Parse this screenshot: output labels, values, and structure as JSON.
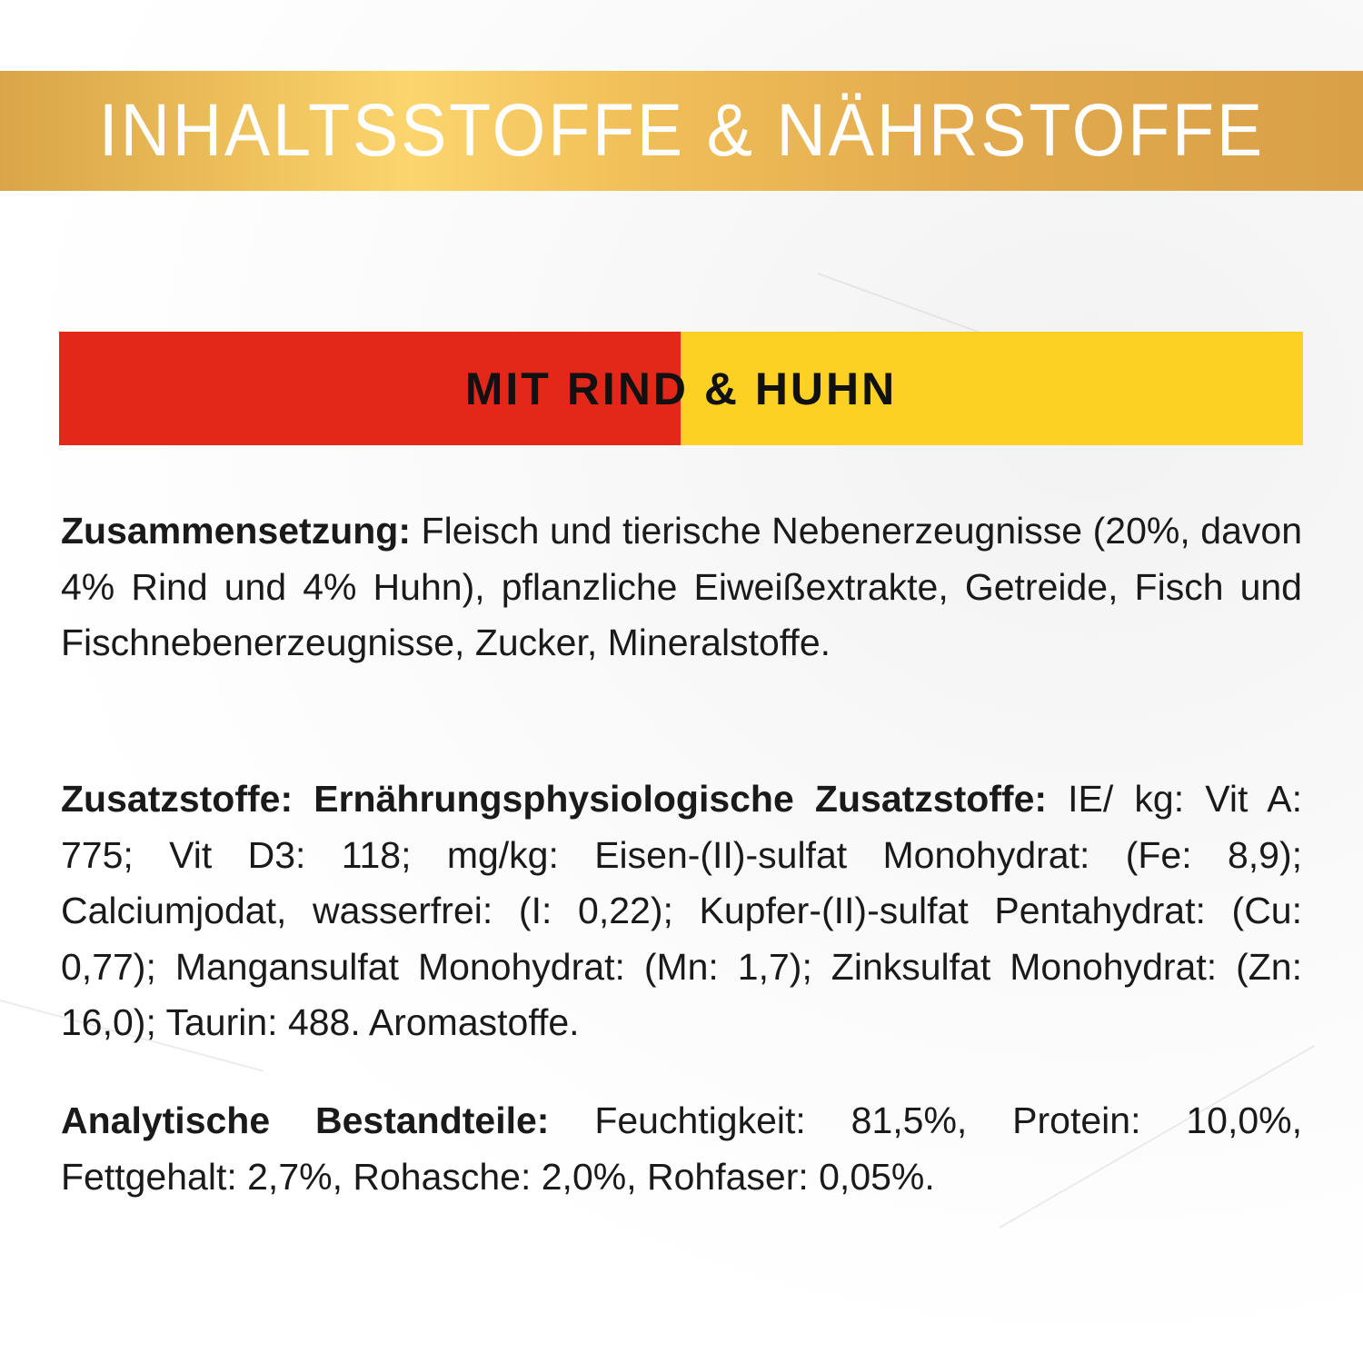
{
  "header": {
    "title": "INHALTSSTOFFE & NÄHRSTOFFE"
  },
  "flavor": {
    "label": "MIT RIND & HUHN",
    "colors": {
      "left": "#e32718",
      "right": "#fdd123"
    }
  },
  "sections": [
    {
      "label": "Zusammensetzung:",
      "text": " Fleisch und tierische Nebenerzeugnisse (20%, davon 4% Rind und 4% Huhn), pflanzliche Eiweißextrakte, Getreide, Fisch und Fischnebenerzeugnisse, Zucker, Mineralstoffe."
    },
    {
      "label": "Zusatzstoffe: Ernährungsphysiologische Zusatzstoffe:",
      "text": " IE/ kg: Vit A: 775; Vit D3: 118; mg/kg: Eisen-(II)-sulfat Monohydrat: (Fe: 8,9); Calciumjodat, wasserfrei: (I: 0,22); Kupfer-(II)-sulfat Pentahydrat: (Cu: 0,77); Mangansulfat Monohydrat: (Mn: 1,7); Zinksulfat Monohydrat: (Zn: 16,0); Taurin: 488. Aromastoffe."
    },
    {
      "label": "Analytische Bestandteile:",
      "text": " Feuchtigkeit: 81,5%, Protein: 10,0%, Fettgehalt: 2,7%, Rohasche: 2,0%, Rohfaser: 0,05%."
    }
  ],
  "colors": {
    "header_gold": "#e8b453",
    "background": "#ffffff"
  }
}
